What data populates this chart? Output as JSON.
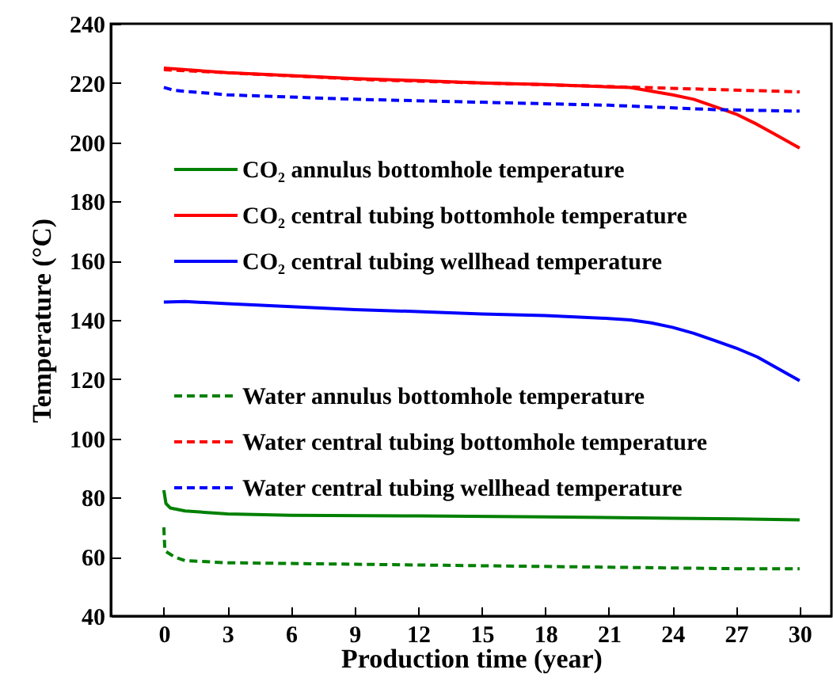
{
  "chart_data": {
    "type": "line",
    "xlabel": "Production time (year)",
    "ylabel": "Temperature (°C)",
    "xlim": [
      -2.5,
      31.5
    ],
    "xticks": [
      0,
      3,
      6,
      9,
      12,
      15,
      18,
      21,
      24,
      27,
      30
    ],
    "ylim": [
      40,
      240
    ],
    "yticks": [
      40,
      60,
      80,
      100,
      120,
      140,
      160,
      180,
      200,
      220,
      240
    ],
    "legend": "left",
    "grid": false,
    "marker": "none",
    "series": [
      {
        "name": "CO₂ annulus bottomhole temperature",
        "color": "#008000",
        "line_style": "solid",
        "x": [
          0,
          0.1,
          0.3,
          1,
          3,
          6,
          12,
          18,
          24,
          27,
          30
        ],
        "values": [
          82.5,
          78,
          76.5,
          75.5,
          74.5,
          74,
          73.8,
          73.5,
          73,
          72.8,
          72.5
        ]
      },
      {
        "name": "CO₂ central tubing bottomhole temperature",
        "color": "#ff0000",
        "line_style": "solid",
        "x": [
          0,
          3,
          6,
          9,
          12,
          15,
          18,
          21,
          22,
          24,
          25,
          26,
          27,
          28,
          29,
          30
        ],
        "values": [
          225,
          223.5,
          222.5,
          221.5,
          220.8,
          220,
          219.5,
          218.7,
          218.5,
          216,
          214.5,
          212,
          209.5,
          206,
          202,
          198
        ]
      },
      {
        "name": "CO₂ central tubing wellhead temperature",
        "color": "#0000ff",
        "line_style": "solid",
        "x": [
          0,
          1,
          3,
          6,
          9,
          12,
          15,
          18,
          21,
          22,
          23,
          24,
          25,
          26,
          27,
          28,
          29,
          30
        ],
        "values": [
          146,
          146.2,
          145.5,
          144.5,
          143.5,
          142.8,
          142,
          141.5,
          140.5,
          140,
          139,
          137.5,
          135.5,
          133,
          130.5,
          127.5,
          123.5,
          119.5
        ]
      },
      {
        "name": "Water annulus bottomhole temperature",
        "color": "#008000",
        "line_style": "dashed",
        "x": [
          0,
          0.05,
          0.5,
          1,
          3,
          9,
          15,
          21,
          27,
          30
        ],
        "values": [
          70,
          62,
          60,
          58.7,
          58,
          57.5,
          57,
          56.5,
          56,
          56
        ]
      },
      {
        "name": "Water central tubing bottomhole temperature",
        "color": "#ff0000",
        "line_style": "dashed",
        "x": [
          0,
          10,
          20,
          30
        ],
        "values": [
          224.5,
          221,
          219,
          217
        ]
      },
      {
        "name": "Water central tubing wellhead temperature",
        "color": "#0000ff",
        "line_style": "dashed",
        "x": [
          0,
          0.5,
          3,
          9,
          15,
          21,
          26,
          30
        ],
        "values": [
          218.5,
          217.5,
          216,
          214.5,
          213.5,
          212.5,
          211,
          210.5
        ]
      }
    ]
  }
}
